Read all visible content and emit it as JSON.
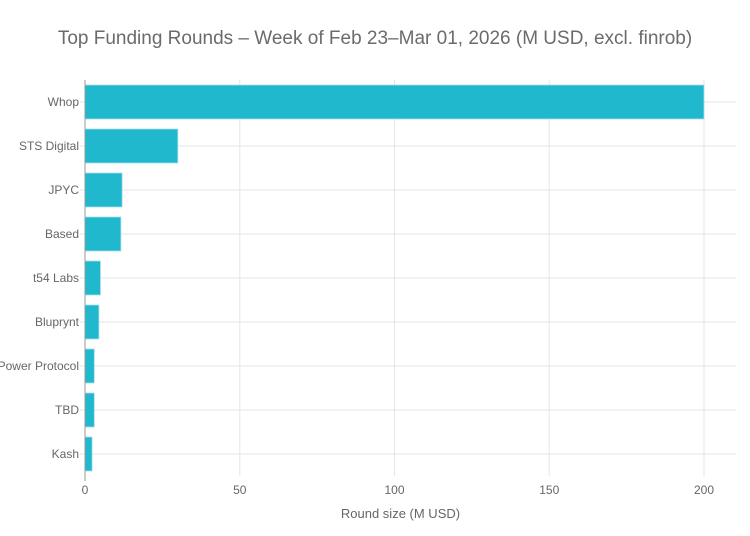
{
  "chart_data": {
    "type": "bar",
    "orientation": "horizontal",
    "title": "Top Funding Rounds – Week of Feb 23–Mar 01, 2026 (M USD, excl. finrob)",
    "xlabel": "Round size (M USD)",
    "ylabel": "",
    "categories": [
      "Whop",
      "STS Digital",
      "JPYC",
      "Based",
      "t54 Labs",
      "Bluprynt",
      "Power Protocol",
      "TBD",
      "Kash"
    ],
    "values": [
      200,
      30,
      12,
      11.6,
      5,
      4.5,
      3,
      3,
      2.3
    ],
    "xlim": [
      0,
      205
    ],
    "xticks": [
      0,
      50,
      100,
      150,
      200
    ],
    "grid": true,
    "bar_color": "#1fb8cd"
  }
}
